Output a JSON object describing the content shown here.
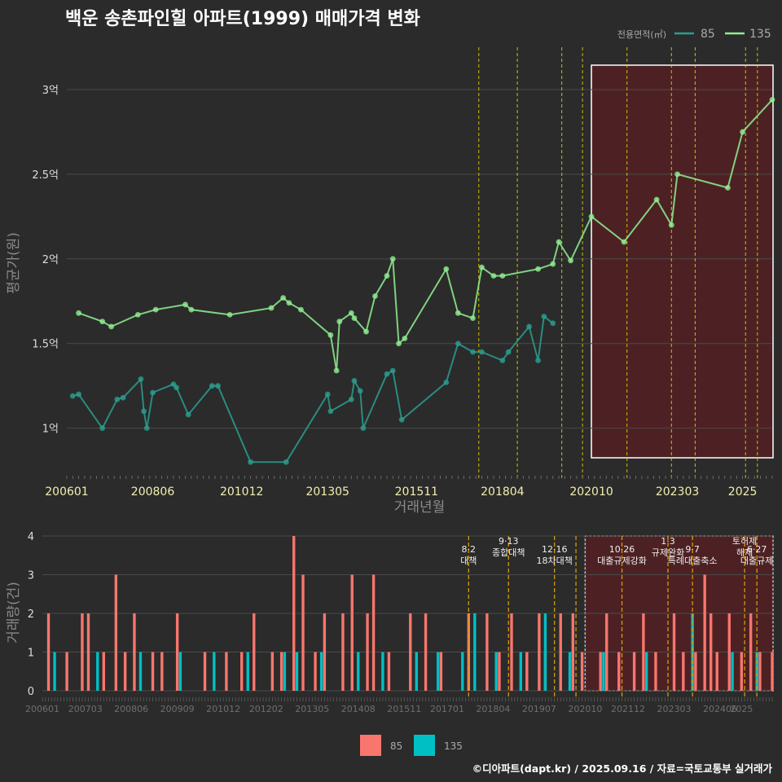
{
  "title": "백운 송촌파인힐 아파트(1999) 매매가격 변화",
  "caption": "©디아파트(dapt.kr) / 2025.09.16 / 자료=국토교통부 실거래가",
  "colors": {
    "background": "#2b2b2b",
    "grid": "#4a4a4a",
    "series_85_price": "#2a9d8f",
    "series_135_price": "#90ee90",
    "volume_85": "#f8766d",
    "volume_135": "#00bfc4",
    "policy_line": "#e6d800",
    "highlight_fill": "#5a1f22"
  },
  "chart_data": [
    {
      "type": "line",
      "title": "백운 송촌파인힐 아파트(1999) 매매가격 변화",
      "xlabel": "거래년월",
      "ylabel": "평균가(원)",
      "x_ticks": [
        "200601",
        "200806",
        "201012",
        "201305",
        "201511",
        "201804",
        "202010",
        "202303",
        "2025"
      ],
      "y_ticks": [
        {
          "value": 1.0,
          "label": "1억"
        },
        {
          "value": 1.5,
          "label": "1.5억"
        },
        {
          "value": 2.0,
          "label": "2억"
        },
        {
          "value": 2.5,
          "label": "2.5억"
        },
        {
          "value": 3.0,
          "label": "3억"
        }
      ],
      "xlim": [
        "2006-01",
        "2025-11"
      ],
      "ylim": [
        0.7,
        3.25
      ],
      "legend": {
        "title": "전용면적(㎡)",
        "position": "top-right",
        "entries": [
          "85",
          "135"
        ]
      },
      "series": [
        {
          "name": "135",
          "color": "#90ee90",
          "points": [
            [
              "2006-05",
              1.68
            ],
            [
              "2007-01",
              1.63
            ],
            [
              "2007-04",
              1.6
            ],
            [
              "2008-01",
              1.67
            ],
            [
              "2008-07",
              1.7
            ],
            [
              "2009-05",
              1.73
            ],
            [
              "2009-07",
              1.7
            ],
            [
              "2010-08",
              1.67
            ],
            [
              "2011-10",
              1.71
            ],
            [
              "2012-02",
              1.77
            ],
            [
              "2012-04",
              1.74
            ],
            [
              "2012-08",
              1.7
            ],
            [
              "2013-06",
              1.55
            ],
            [
              "2013-08",
              1.34
            ],
            [
              "2013-09",
              1.63
            ],
            [
              "2014-01",
              1.68
            ],
            [
              "2014-02",
              1.65
            ],
            [
              "2014-06",
              1.57
            ],
            [
              "2014-09",
              1.78
            ],
            [
              "2015-01",
              1.9
            ],
            [
              "2015-03",
              2.0
            ],
            [
              "2015-05",
              1.5
            ],
            [
              "2015-07",
              1.53
            ],
            [
              "2016-09",
              1.94
            ],
            [
              "2017-01",
              1.68
            ],
            [
              "2017-06",
              1.65
            ],
            [
              "2017-09",
              1.95
            ],
            [
              "2018-01",
              1.9
            ],
            [
              "2018-04",
              1.9
            ],
            [
              "2019-04",
              1.94
            ],
            [
              "2019-09",
              1.97
            ],
            [
              "2019-11",
              2.1
            ],
            [
              "2020-03",
              1.99
            ],
            [
              "2020-10",
              2.25
            ],
            [
              "2021-09",
              2.1
            ],
            [
              "2022-08",
              2.35
            ],
            [
              "2023-01",
              2.2
            ],
            [
              "2023-03",
              2.5
            ],
            [
              "2024-08",
              2.42
            ],
            [
              "2025-01",
              2.75
            ],
            [
              "2025-11",
              2.94
            ]
          ]
        },
        {
          "name": "85",
          "color": "#2a9d8f",
          "points": [
            [
              "2006-03",
              1.19
            ],
            [
              "2006-05",
              1.2
            ],
            [
              "2007-01",
              1.0
            ],
            [
              "2007-06",
              1.17
            ],
            [
              "2007-08",
              1.18
            ],
            [
              "2008-02",
              1.29
            ],
            [
              "2008-03",
              1.1
            ],
            [
              "2008-04",
              1.0
            ],
            [
              "2008-06",
              1.21
            ],
            [
              "2009-01",
              1.26
            ],
            [
              "2009-02",
              1.24
            ],
            [
              "2009-06",
              1.08
            ],
            [
              "2010-02",
              1.25
            ],
            [
              "2010-04",
              1.25
            ],
            [
              "2011-03",
              0.8
            ],
            [
              "2012-03",
              0.8
            ],
            [
              "2013-05",
              1.2
            ],
            [
              "2013-06",
              1.1
            ],
            [
              "2014-01",
              1.17
            ],
            [
              "2014-02",
              1.28
            ],
            [
              "2014-04",
              1.22
            ],
            [
              "2014-05",
              1.0
            ],
            [
              "2015-01",
              1.32
            ],
            [
              "2015-03",
              1.34
            ],
            [
              "2015-06",
              1.05
            ],
            [
              "2016-09",
              1.27
            ],
            [
              "2017-01",
              1.5
            ],
            [
              "2017-06",
              1.45
            ],
            [
              "2017-09",
              1.45
            ],
            [
              "2018-04",
              1.4
            ],
            [
              "2018-06",
              1.45
            ],
            [
              "2019-01",
              1.6
            ],
            [
              "2019-04",
              1.4
            ],
            [
              "2019-06",
              1.66
            ],
            [
              "2019-09",
              1.62
            ]
          ]
        }
      ],
      "highlight": {
        "from": "2020-10",
        "to": "2025-11"
      },
      "policy_lines": [
        "2017-08",
        "2018-09",
        "2019-12",
        "2020-07",
        "2021-10",
        "2023-01",
        "2023-09",
        "2025-02",
        "2025-06"
      ]
    },
    {
      "type": "bar",
      "title": "",
      "xlabel": "",
      "ylabel": "거래량(건)",
      "x_ticks": [
        "200601",
        "200703",
        "200806",
        "200909",
        "201012",
        "201202",
        "201305",
        "201408",
        "201511",
        "201701",
        "201804",
        "201907",
        "202010",
        "202112",
        "202303",
        "202406",
        "2025"
      ],
      "ylim": [
        0,
        4
      ],
      "y_ticks": [
        0,
        1,
        2,
        3,
        4
      ],
      "legend": {
        "position": "bottom",
        "entries": [
          "85",
          "135"
        ]
      },
      "series": [
        {
          "name": "85",
          "color": "#f8766d",
          "values": [
            [
              "2006-03",
              2
            ],
            [
              "2006-09",
              1
            ],
            [
              "2007-02",
              2
            ],
            [
              "2007-04",
              2
            ],
            [
              "2007-09",
              1
            ],
            [
              "2008-01",
              3
            ],
            [
              "2008-04",
              1
            ],
            [
              "2008-07",
              2
            ],
            [
              "2009-01",
              1
            ],
            [
              "2009-04",
              1
            ],
            [
              "2009-09",
              2
            ],
            [
              "2010-06",
              1
            ],
            [
              "2011-01",
              1
            ],
            [
              "2011-06",
              1
            ],
            [
              "2011-10",
              2
            ],
            [
              "2012-04",
              1
            ],
            [
              "2012-07",
              1
            ],
            [
              "2012-11",
              4
            ],
            [
              "2013-02",
              3
            ],
            [
              "2013-06",
              1
            ],
            [
              "2013-09",
              2
            ],
            [
              "2014-03",
              2
            ],
            [
              "2014-06",
              3
            ],
            [
              "2014-11",
              2
            ],
            [
              "2015-01",
              3
            ],
            [
              "2015-06",
              1
            ],
            [
              "2016-01",
              2
            ],
            [
              "2016-06",
              2
            ],
            [
              "2016-11",
              1
            ],
            [
              "2017-08",
              2
            ],
            [
              "2018-02",
              2
            ],
            [
              "2018-06",
              1
            ],
            [
              "2018-10",
              2
            ],
            [
              "2019-03",
              1
            ],
            [
              "2019-07",
              2
            ],
            [
              "2019-09",
              1
            ],
            [
              "2020-02",
              2
            ],
            [
              "2020-06",
              2
            ],
            [
              "2020-09",
              1
            ],
            [
              "2021-03",
              1
            ],
            [
              "2021-05",
              2
            ],
            [
              "2021-09",
              1
            ],
            [
              "2022-02",
              1
            ],
            [
              "2022-05",
              2
            ],
            [
              "2022-09",
              1
            ],
            [
              "2023-03",
              2
            ],
            [
              "2023-06",
              1
            ],
            [
              "2023-10",
              1
            ],
            [
              "2024-01",
              3
            ],
            [
              "2024-03",
              2
            ],
            [
              "2024-05",
              1
            ],
            [
              "2024-09",
              2
            ],
            [
              "2025-01",
              1
            ],
            [
              "2025-04",
              2
            ],
            [
              "2025-07",
              1
            ],
            [
              "2025-11",
              1
            ]
          ]
        },
        {
          "name": "135",
          "color": "#00bfc4",
          "values": [
            [
              "2006-05",
              1
            ],
            [
              "2007-07",
              1
            ],
            [
              "2008-09",
              1
            ],
            [
              "2009-10",
              1
            ],
            [
              "2010-09",
              1
            ],
            [
              "2011-08",
              1
            ],
            [
              "2012-08",
              1
            ],
            [
              "2012-12",
              1
            ],
            [
              "2013-08",
              1
            ],
            [
              "2014-08",
              1
            ],
            [
              "2015-04",
              1
            ],
            [
              "2016-03",
              1
            ],
            [
              "2016-10",
              1
            ],
            [
              "2017-06",
              1
            ],
            [
              "2017-10",
              2
            ],
            [
              "2018-05",
              1
            ],
            [
              "2019-01",
              1
            ],
            [
              "2019-09",
              2
            ],
            [
              "2020-05",
              1
            ],
            [
              "2021-04",
              1
            ],
            [
              "2022-06",
              1
            ],
            [
              "2023-09",
              2
            ],
            [
              "2024-10",
              1
            ],
            [
              "2025-06",
              1
            ]
          ]
        }
      ],
      "highlight": {
        "from": "2020-10",
        "to": "2025-11"
      },
      "policy_events": [
        {
          "date": "2017-08",
          "label": "8·2 대책"
        },
        {
          "date": "2018-09",
          "label": "9·13 종합대책"
        },
        {
          "date": "2019-12",
          "label": "12·16 18차대책"
        },
        {
          "date": "2020-07",
          "label": ""
        },
        {
          "date": "2021-10",
          "label": "10·26 대출규제강화"
        },
        {
          "date": "2023-01",
          "label": "1·3 규제완화"
        },
        {
          "date": "2023-09",
          "label": "9·7 특례대출축소"
        },
        {
          "date": "2025-02",
          "label": "토허제 해제"
        },
        {
          "date": "2025-06",
          "label": "6·27 대출규제"
        }
      ]
    }
  ]
}
